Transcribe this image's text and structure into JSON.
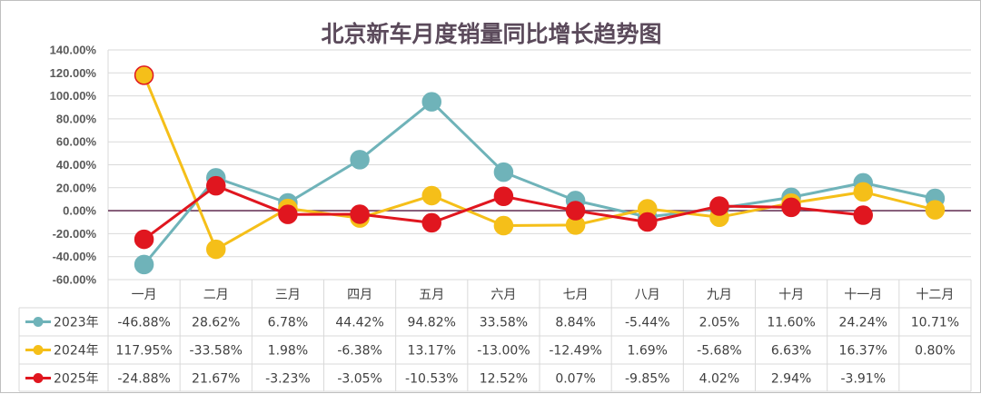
{
  "chart_data": {
    "type": "line",
    "title": "北京新车月度销量同比增长趋势图",
    "categories": [
      "一月",
      "二月",
      "三月",
      "四月",
      "五月",
      "六月",
      "七月",
      "八月",
      "九月",
      "十月",
      "十一月",
      "十二月"
    ],
    "ylim": [
      -60,
      140
    ],
    "yticks": [
      "-60.00%",
      "-40.00%",
      "-20.00%",
      "0.00%",
      "20.00%",
      "40.00%",
      "60.00%",
      "80.00%",
      "100.00%",
      "120.00%",
      "140.00%"
    ],
    "series": [
      {
        "name": "2023年",
        "color": "#6fb3b9",
        "marker_fill": "#6fb3b9",
        "values": [
          -46.88,
          28.62,
          6.78,
          44.42,
          94.82,
          33.58,
          8.84,
          -5.44,
          2.05,
          11.6,
          24.24,
          10.71
        ],
        "labels": [
          "-46.88%",
          "28.62%",
          "6.78%",
          "44.42%",
          "94.82%",
          "33.58%",
          "8.84%",
          "-5.44%",
          "2.05%",
          "11.60%",
          "24.24%",
          "10.71%"
        ]
      },
      {
        "name": "2024年",
        "color": "#f5bf19",
        "marker_fill": "#f5bf19",
        "values": [
          117.95,
          -33.58,
          1.98,
          -6.38,
          13.17,
          -13.0,
          -12.49,
          1.69,
          -5.68,
          6.63,
          16.37,
          0.8
        ],
        "labels": [
          "117.95%",
          "-33.58%",
          "1.98%",
          "-6.38%",
          "13.17%",
          "-13.00%",
          "-12.49%",
          "1.69%",
          "-5.68%",
          "6.63%",
          "16.37%",
          "0.80%"
        ]
      },
      {
        "name": "2025年",
        "color": "#e0161f",
        "marker_fill": "#e0161f",
        "values": [
          -24.88,
          21.67,
          -3.23,
          -3.05,
          -10.53,
          12.52,
          0.07,
          -9.85,
          4.02,
          2.94,
          -3.91,
          null
        ],
        "labels": [
          "-24.88%",
          "21.67%",
          "-3.23%",
          "-3.05%",
          "-10.53%",
          "12.52%",
          "0.07%",
          "-9.85%",
          "4.02%",
          "2.94%",
          "-3.91%",
          ""
        ]
      }
    ]
  },
  "colors": {
    "zero_line": "#6b3a5b",
    "grid": "#d9d9d9",
    "border": "#bfbfbf",
    "highlight_marker_fill": "#f5bf19",
    "highlight_marker_stroke": "#e0161f"
  }
}
